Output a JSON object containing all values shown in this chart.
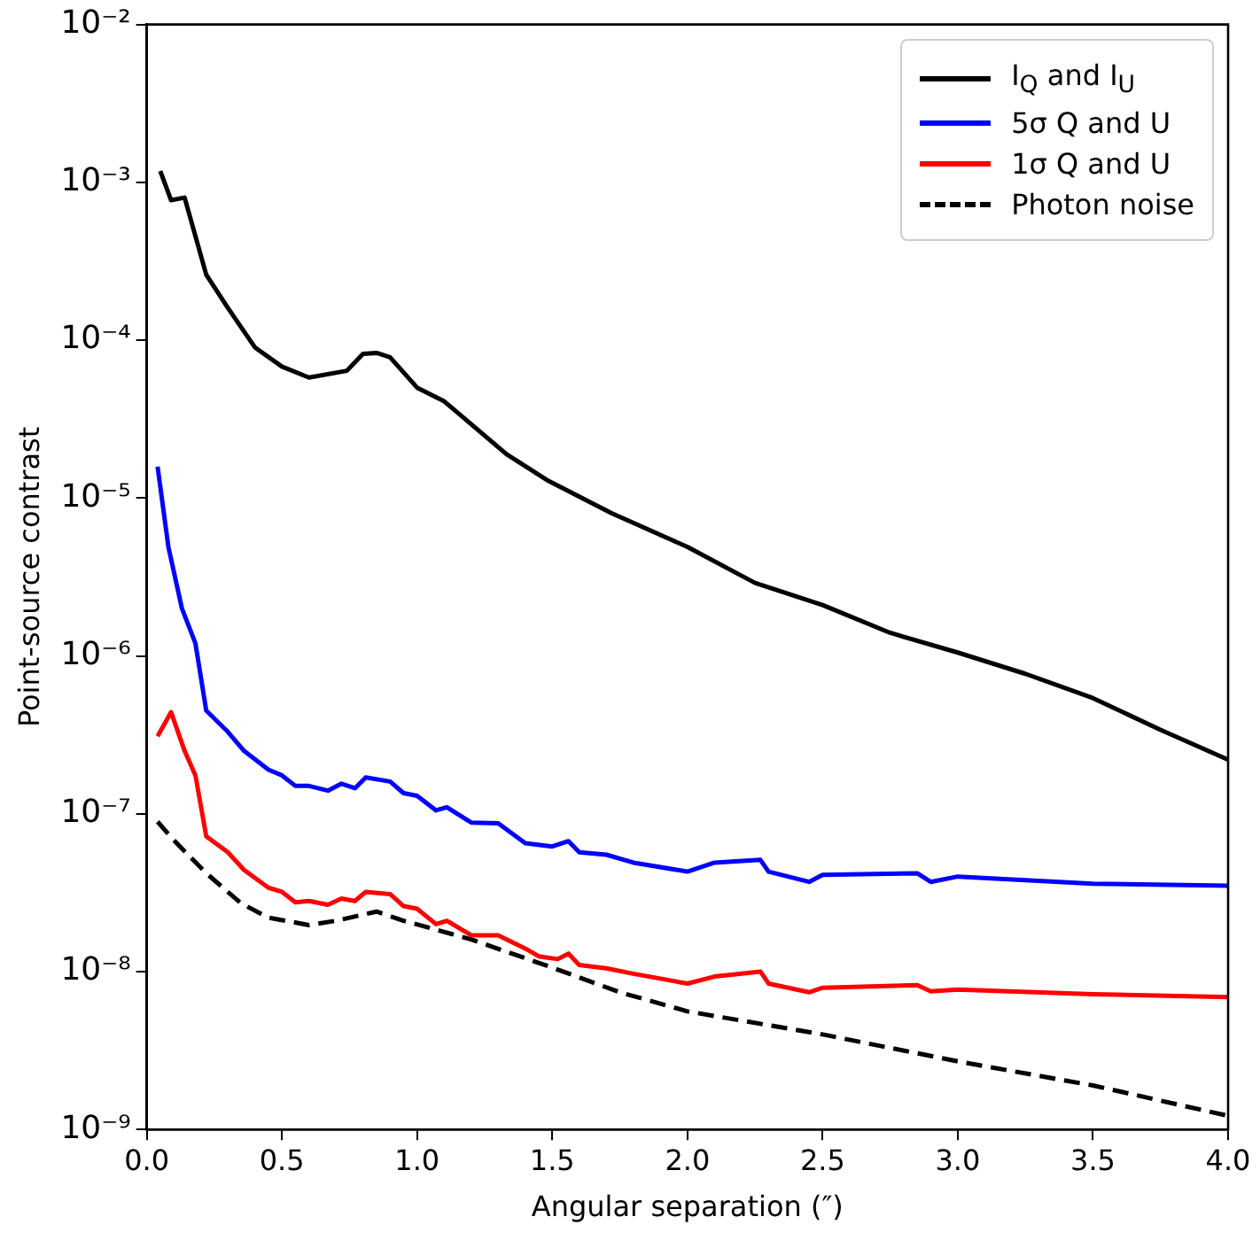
{
  "chart_data": {
    "type": "line",
    "xlabel": "Angular separation (″)",
    "ylabel": "Point-source contrast",
    "log": "y",
    "grid": false,
    "legend": "top right",
    "marker": "none",
    "xlim": [
      0,
      4
    ],
    "xticks": [
      {
        "value": 0,
        "label": "0.0"
      },
      {
        "value": 0.5,
        "label": "0.5"
      },
      {
        "value": 1,
        "label": "1.0"
      },
      {
        "value": 1.5,
        "label": "1.5"
      },
      {
        "value": 2,
        "label": "2.0"
      },
      {
        "value": 2.5,
        "label": "2.5"
      },
      {
        "value": 3,
        "label": "3.0"
      },
      {
        "value": 3.5,
        "label": "3.5"
      },
      {
        "value": 4,
        "label": "4.0"
      }
    ],
    "ylim": [
      1e-09,
      0.01
    ],
    "yticks": [
      {
        "value": 1e-09,
        "label": "10⁻⁹"
      },
      {
        "value": 1e-08,
        "label": "10⁻⁸"
      },
      {
        "value": 1e-07,
        "label": "10⁻⁷"
      },
      {
        "value": 1e-06,
        "label": "10⁻⁶"
      },
      {
        "value": 1e-05,
        "label": "10⁻⁵"
      },
      {
        "value": 0.0001,
        "label": "10⁻⁴"
      },
      {
        "value": 0.001,
        "label": "10⁻³"
      },
      {
        "value": 0.01,
        "label": "10⁻²"
      }
    ],
    "series": [
      {
        "name": "I$_{Q}$ and I$_{U}$",
        "color": "#000000",
        "line_style": "solid",
        "x": [
          0.05,
          0.09,
          0.14,
          0.22,
          0.3,
          0.4,
          0.5,
          0.6,
          0.74,
          0.8,
          0.85,
          0.9,
          1.0,
          1.1,
          1.33,
          1.48,
          1.72,
          2.0,
          2.25,
          2.5,
          2.75,
          3.0,
          3.25,
          3.5,
          3.75,
          4.0
        ],
        "values": [
          0.00118,
          0.00077,
          0.0008,
          0.00026,
          0.00016,
          9e-05,
          6.8e-05,
          5.8e-05,
          6.4e-05,
          8.2e-05,
          8.3e-05,
          7.8e-05,
          5e-05,
          4.1e-05,
          1.9e-05,
          1.3e-05,
          8e-06,
          4.9e-06,
          2.9e-06,
          2.1e-06,
          1.4e-06,
          1.05e-06,
          7.7e-07,
          5.4e-07,
          3.4e-07,
          2.2e-07
        ]
      },
      {
        "name": "5σ Q and U",
        "color": "#0000ff",
        "line_style": "solid",
        "x": [
          0.04,
          0.08,
          0.13,
          0.18,
          0.22,
          0.3,
          0.36,
          0.45,
          0.5,
          0.55,
          0.6,
          0.67,
          0.72,
          0.77,
          0.81,
          0.9,
          0.95,
          1.0,
          1.07,
          1.11,
          1.2,
          1.3,
          1.4,
          1.5,
          1.56,
          1.6,
          1.7,
          1.8,
          2.0,
          2.1,
          2.27,
          2.3,
          2.45,
          2.5,
          2.85,
          2.9,
          3.0,
          3.5,
          4.0
        ],
        "values": [
          1.58e-05,
          4.9e-06,
          2e-06,
          1.2e-06,
          4.5e-07,
          3.3e-07,
          2.5e-07,
          1.9e-07,
          1.75e-07,
          1.5e-07,
          1.5e-07,
          1.4e-07,
          1.55e-07,
          1.45e-07,
          1.7e-07,
          1.6e-07,
          1.35e-07,
          1.3e-07,
          1.05e-07,
          1.1e-07,
          8.8e-08,
          8.7e-08,
          6.5e-08,
          6.2e-08,
          6.7e-08,
          5.7e-08,
          5.5e-08,
          4.9e-08,
          4.3e-08,
          4.9e-08,
          5.1e-08,
          4.3e-08,
          3.7e-08,
          4.1e-08,
          4.2e-08,
          3.7e-08,
          4e-08,
          3.6e-08,
          3.5e-08
        ]
      },
      {
        "name": "1σ Q and U",
        "color": "#ff0000",
        "line_style": "solid",
        "x": [
          0.04,
          0.09,
          0.14,
          0.18,
          0.22,
          0.3,
          0.36,
          0.45,
          0.5,
          0.55,
          0.6,
          0.67,
          0.72,
          0.77,
          0.81,
          0.9,
          0.95,
          1.0,
          1.07,
          1.11,
          1.2,
          1.3,
          1.4,
          1.45,
          1.52,
          1.56,
          1.6,
          1.7,
          1.8,
          2.0,
          2.1,
          2.27,
          2.3,
          2.45,
          2.5,
          2.85,
          2.9,
          3.0,
          3.5,
          4.0
        ],
        "values": [
          3.1e-07,
          4.4e-07,
          2.5e-07,
          1.75e-07,
          7.2e-08,
          5.7e-08,
          4.4e-08,
          3.4e-08,
          3.2e-08,
          2.75e-08,
          2.8e-08,
          2.65e-08,
          2.9e-08,
          2.8e-08,
          3.2e-08,
          3.1e-08,
          2.6e-08,
          2.5e-08,
          2e-08,
          2.1e-08,
          1.7e-08,
          1.7e-08,
          1.4e-08,
          1.25e-08,
          1.2e-08,
          1.3e-08,
          1.1e-08,
          1.05e-08,
          9.7e-09,
          8.4e-09,
          9.3e-09,
          1e-08,
          8.4e-09,
          7.4e-09,
          7.9e-09,
          8.2e-09,
          7.5e-09,
          7.7e-09,
          7.2e-09,
          6.9e-09
        ]
      },
      {
        "name": "Photon noise",
        "color": "#000000",
        "line_style": "dashed",
        "x": [
          0.04,
          0.1,
          0.22,
          0.35,
          0.45,
          0.6,
          0.7,
          0.85,
          0.95,
          1.2,
          1.5,
          1.75,
          2.0,
          2.5,
          3.0,
          3.5,
          4.0
        ],
        "values": [
          8.9e-08,
          6.8e-08,
          4.2e-08,
          2.7e-08,
          2.2e-08,
          1.97e-08,
          2.1e-08,
          2.4e-08,
          2.1e-08,
          1.6e-08,
          1.06e-08,
          7.4e-09,
          5.6e-09,
          4e-09,
          2.7e-09,
          1.9e-09,
          1.22e-09
        ]
      }
    ]
  }
}
